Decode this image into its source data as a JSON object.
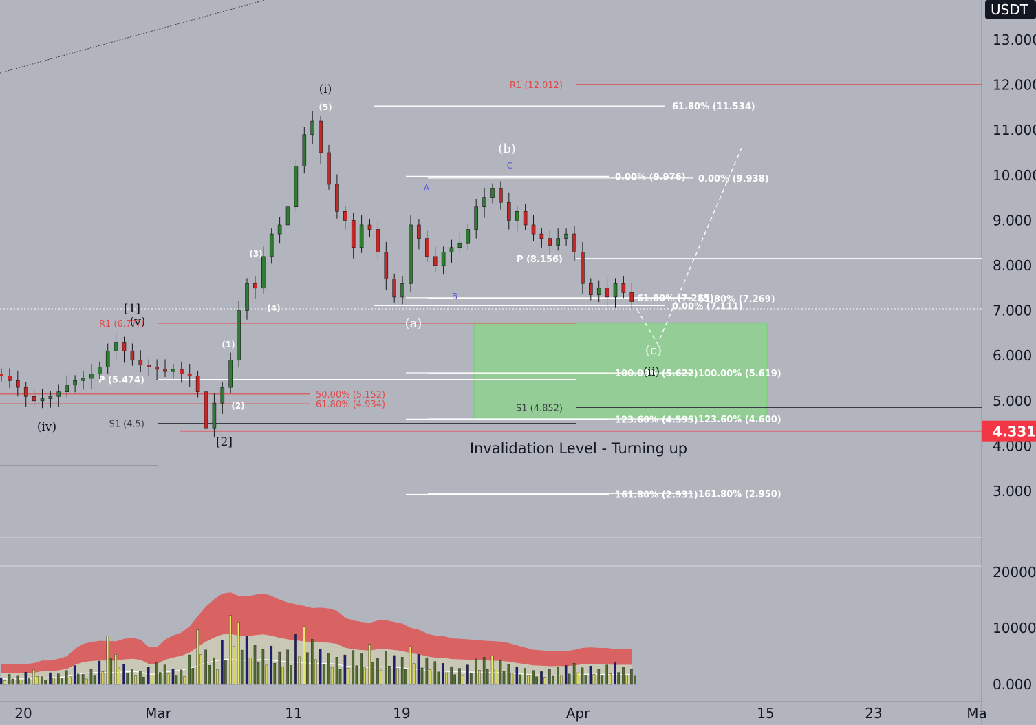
{
  "chart_data": {
    "type": "candlestick",
    "currency": "USDT",
    "current_price": "4.331",
    "price_axis": {
      "ticks": [
        "13.000",
        "12.000",
        "11.000",
        "10.000",
        "9.000",
        "8.000",
        "7.000",
        "6.000",
        "5.000",
        "4.000",
        "3.000"
      ],
      "range": [
        1.6,
        13.9
      ]
    },
    "volume_axis": {
      "ticks": [
        "20000",
        "10000",
        "0.000"
      ]
    },
    "x_ticks": [
      "20",
      "Mar",
      "11",
      "19",
      "Apr",
      "15",
      "23",
      "Ma"
    ],
    "closes": [
      5.55,
      5.45,
      5.3,
      5.1,
      5.0,
      5.05,
      5.1,
      5.2,
      5.35,
      5.45,
      5.5,
      5.6,
      5.75,
      6.1,
      6.3,
      6.1,
      5.9,
      5.8,
      5.75,
      5.7,
      5.65,
      5.7,
      5.6,
      5.55,
      5.2,
      4.4,
      4.95,
      5.3,
      5.9,
      7.0,
      7.6,
      7.5,
      8.2,
      8.7,
      8.9,
      9.3,
      10.2,
      10.9,
      11.2,
      10.5,
      9.8,
      9.2,
      9.0,
      8.4,
      8.9,
      8.8,
      8.3,
      7.7,
      7.3,
      7.6,
      8.9,
      8.6,
      8.2,
      8.0,
      8.3,
      8.4,
      8.5,
      8.8,
      9.3,
      9.5,
      9.7,
      9.4,
      9.0,
      9.2,
      8.9,
      8.7,
      8.6,
      8.45,
      8.6,
      8.7,
      8.3,
      7.6,
      7.35,
      7.5,
      7.3,
      7.6,
      7.4,
      7.2
    ],
    "volume_values": [
      1200,
      1800,
      1500,
      2200,
      2600,
      1400,
      2100,
      1900,
      2500,
      3400,
      1800,
      2800,
      4200,
      8700,
      5400,
      3600,
      2800,
      2400,
      3100,
      3900,
      3500,
      2800,
      2600,
      5300,
      9800,
      6200,
      4800,
      7900,
      12400,
      11200,
      8600,
      7100,
      6300,
      6900,
      5800,
      6200,
      9000,
      10400,
      8100,
      6400,
      5600,
      4900,
      5300,
      6100,
      5500,
      7200,
      4700,
      6000,
      5200,
      4900,
      6800,
      5400,
      4800,
      4100,
      3800,
      3200,
      2900,
      3500,
      4600,
      4900,
      5100,
      4300,
      3600,
      3200,
      2900,
      2500,
      2300,
      2700,
      3100,
      3400,
      3800,
      3000,
      3300,
      2800,
      3500,
      3900,
      3100,
      2700
    ],
    "levels": [
      {
        "label": "R1 (12.012)",
        "value": 12.012,
        "color": "#e04a4a"
      },
      {
        "label": "61.80% (11.534)",
        "value": 11.534,
        "color": "#ffffff"
      },
      {
        "label": "0.00% (9.976)",
        "value": 9.976,
        "color": "#ffffff"
      },
      {
        "label": "0.00% (9.938)",
        "value": 9.938,
        "color": "#ffffff"
      },
      {
        "label": "P (8.156)",
        "value": 8.156,
        "color": "#ffffff"
      },
      {
        "label": "61.80% (7.285)",
        "value": 7.285,
        "color": "#ffffff"
      },
      {
        "label": "61.80% (7.269)",
        "value": 7.269,
        "color": "#ffffff"
      },
      {
        "label": "0.00% (7.111)",
        "value": 7.111,
        "color": "#ffffff"
      },
      {
        "label": "R1 (6.7??)",
        "value": 6.72,
        "color": "#e04a4a"
      },
      {
        "label": "100.00% (5.622)",
        "value": 5.622,
        "color": "#ffffff"
      },
      {
        "label": "100.00% (5.619)",
        "value": 5.619,
        "color": "#ffffff"
      },
      {
        "label": "P (5.474)",
        "value": 5.474,
        "color": "#ffffff"
      },
      {
        "label": "50.00% (5.152)",
        "value": 5.152,
        "color": "#e04a4a"
      },
      {
        "label": "61.80% (4.934)",
        "value": 4.934,
        "color": "#e04a4a"
      },
      {
        "label": "S1 (4.852)",
        "value": 4.852,
        "color": "#3a3d45"
      },
      {
        "label": "123.60% (4.595)",
        "value": 4.595,
        "color": "#ffffff"
      },
      {
        "label": "123.60% (4.600)",
        "value": 4.6,
        "color": "#ffffff"
      },
      {
        "label": "S1 (4.5)",
        "value": 4.5,
        "color": "#3a3d45"
      },
      {
        "label": "161.80% (2.931)",
        "value": 2.931,
        "color": "#ffffff"
      },
      {
        "label": "161.80% (2.950)",
        "value": 2.95,
        "color": "#ffffff"
      }
    ],
    "wave_labels": [
      "(i)",
      "(5)",
      "(b)",
      "C",
      "A",
      "B",
      "(a)",
      "(c)",
      "(ii)",
      "[1]",
      "(v)",
      "(3)",
      "(4)",
      "(1)",
      "(2)",
      "[2]",
      "(iv)"
    ],
    "annotations": [
      "Invalidation Level - Turning up"
    ],
    "target_zone": {
      "from": 4.6,
      "to": 6.72,
      "color": "#8fd18f"
    },
    "colors": {
      "background": "#b2b5be",
      "up": "#2e7d32",
      "down": "#c62828",
      "current_price": "#f23645",
      "volume_band": "#d96262",
      "volume_inner": "#c9c8b6",
      "volume_bar": "#e8e86a"
    }
  }
}
